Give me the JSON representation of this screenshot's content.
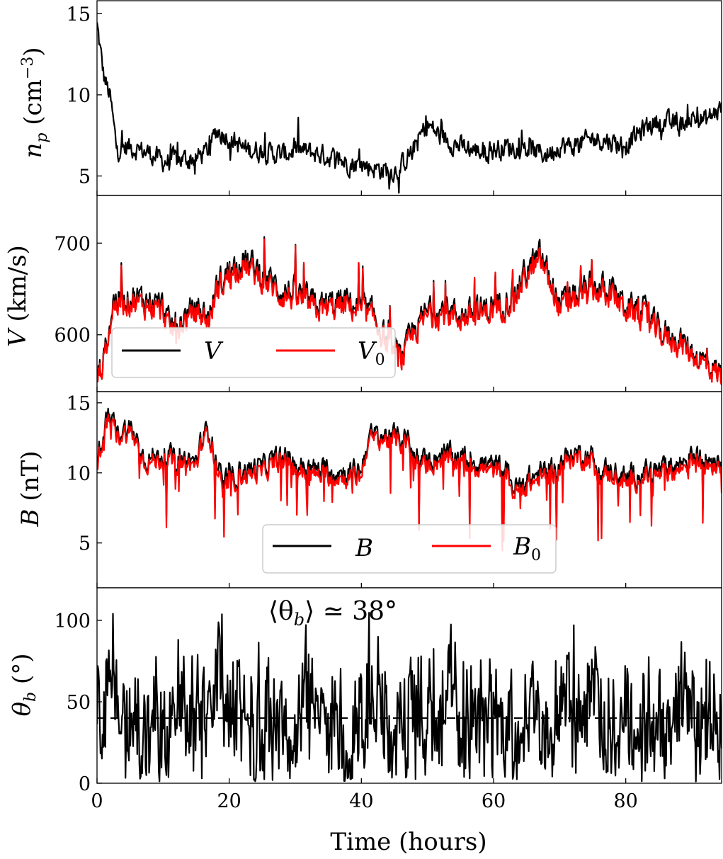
{
  "chart_data": [
    {
      "type": "line",
      "ylabel": "n_p (cm^-3)",
      "ylim": [
        3.8,
        15.8
      ],
      "yticks": [
        "5",
        "10",
        "15"
      ],
      "xlim": [
        0,
        94.5
      ],
      "series": [
        {
          "name": "",
          "color": "#000000",
          "x": [
            0,
            1,
            2,
            2.5,
            3,
            5,
            8,
            10,
            12,
            15,
            17,
            18,
            20,
            22,
            25,
            28,
            30,
            33,
            35,
            38,
            40,
            43,
            45,
            46,
            48,
            50,
            52,
            55,
            58,
            60,
            62,
            65,
            68,
            70,
            72,
            75,
            77,
            80,
            83,
            85,
            88,
            90,
            92,
            94.5
          ],
          "y": [
            14.3,
            11.2,
            9.8,
            8.2,
            6.6,
            6.8,
            6.4,
            5.9,
            6.0,
            6.1,
            6.6,
            7.8,
            7.4,
            6.7,
            6.5,
            6.3,
            6.6,
            6.4,
            6.2,
            5.8,
            5.7,
            5.4,
            5.3,
            5.6,
            6.8,
            8.2,
            7.4,
            6.8,
            6.5,
            6.6,
            6.8,
            6.7,
            6.3,
            6.9,
            6.8,
            7.3,
            7.2,
            6.9,
            8.0,
            8.4,
            8.1,
            8.6,
            8.4,
            9.2
          ]
        }
      ]
    },
    {
      "type": "line",
      "ylabel": "V (km/s)",
      "ylim": [
        538,
        752
      ],
      "yticks": [
        "600",
        "700"
      ],
      "xlim": [
        0,
        94.5
      ],
      "legend": {
        "placement": "lower-left",
        "entries": [
          "V",
          "V_0"
        ]
      },
      "series": [
        {
          "name": "V",
          "color": "#000000",
          "x": [
            0,
            1,
            2.5,
            5,
            8,
            10,
            11,
            12,
            15,
            17,
            18,
            20,
            22,
            25,
            28,
            30,
            33,
            35,
            38,
            40,
            42,
            44,
            46,
            48,
            50,
            53,
            55,
            58,
            60,
            63,
            65,
            67,
            68,
            70,
            73,
            75,
            78,
            80,
            83,
            85,
            88,
            90,
            92,
            94.5
          ],
          "y": [
            555,
            572,
            638,
            641,
            637,
            630,
            607,
            612,
            628,
            619,
            650,
            670,
            683,
            666,
            648,
            646,
            631,
            633,
            636,
            629,
            620,
            590,
            573,
            605,
            625,
            628,
            621,
            626,
            631,
            642,
            670,
            685,
            672,
            631,
            645,
            652,
            649,
            631,
            622,
            604,
            595,
            582,
            570,
            556
          ]
        },
        {
          "name": "V_0",
          "color": "#ff0000",
          "x": [
            0,
            1,
            2.5,
            5,
            8,
            10,
            11,
            12,
            15,
            17,
            18,
            20,
            22,
            25,
            28,
            30,
            33,
            35,
            38,
            40,
            42,
            44,
            46,
            48,
            50,
            53,
            55,
            58,
            60,
            63,
            65,
            67,
            68,
            70,
            73,
            75,
            78,
            80,
            83,
            85,
            88,
            90,
            92,
            94.5
          ],
          "y": [
            553,
            570,
            632,
            636,
            631,
            625,
            603,
            608,
            623,
            615,
            646,
            664,
            676,
            660,
            642,
            641,
            627,
            628,
            631,
            624,
            616,
            587,
            571,
            601,
            620,
            623,
            617,
            622,
            626,
            637,
            664,
            679,
            667,
            627,
            640,
            647,
            644,
            627,
            618,
            600,
            591,
            579,
            567,
            554
          ]
        }
      ]
    },
    {
      "type": "line",
      "ylabel": "B (nT)",
      "ylim": [
        1.8,
        15.8
      ],
      "yticks": [
        "5",
        "10",
        "15"
      ],
      "xlim": [
        0,
        94.5
      ],
      "legend": {
        "placement": "lower-center",
        "entries": [
          "B",
          "B_0"
        ]
      },
      "series": [
        {
          "name": "B",
          "color": "#000000",
          "x": [
            0,
            1,
            2,
            3,
            5,
            6,
            7,
            8,
            10,
            12,
            15,
            16,
            17,
            17.5,
            18,
            19,
            20,
            21,
            22,
            25,
            28,
            30,
            32,
            35,
            38,
            40,
            41,
            42,
            45,
            47,
            48,
            50,
            52,
            55,
            58,
            60,
            62,
            63,
            65,
            68,
            70,
            72,
            75,
            76,
            78,
            80,
            83,
            85,
            88,
            90,
            92,
            94.5
          ],
          "y": [
            10.8,
            13.2,
            14.0,
            12.9,
            13.2,
            12.4,
            11.2,
            11.0,
            11.3,
            11.0,
            10.8,
            12.6,
            13.1,
            12.0,
            11.0,
            9.2,
            9.7,
            9.9,
            10.2,
            10.4,
            11.2,
            10.6,
            10.3,
            10.2,
            10.0,
            10.2,
            12.5,
            12.7,
            12.6,
            12.3,
            11.1,
            10.9,
            11.3,
            11.2,
            10.7,
            10.5,
            10.3,
            8.9,
            9.5,
            10.2,
            10.7,
            11.4,
            11.2,
            10.1,
            10.3,
            9.6,
            10.1,
            10.2,
            10.6,
            11.3,
            11.0,
            11.1
          ]
        },
        {
          "name": "B_0",
          "color": "#ff0000",
          "x": [
            0,
            1,
            2,
            3,
            5,
            6,
            7,
            8,
            10,
            12,
            15,
            16,
            17,
            17.5,
            18,
            19,
            20,
            21,
            22,
            25,
            28,
            30,
            32,
            35,
            38,
            40,
            41,
            42,
            45,
            47,
            48,
            50,
            52,
            55,
            58,
            60,
            62,
            63,
            65,
            68,
            70,
            72,
            75,
            76,
            78,
            80,
            83,
            85,
            88,
            90,
            92,
            94.5
          ],
          "y": [
            10.5,
            12.9,
            13.7,
            12.6,
            12.9,
            12.1,
            10.9,
            10.7,
            11.0,
            10.7,
            10.5,
            12.3,
            12.8,
            11.7,
            10.6,
            8.6,
            9.3,
            9.5,
            9.8,
            10.0,
            10.9,
            10.2,
            9.9,
            9.8,
            9.6,
            9.8,
            12.2,
            12.4,
            12.3,
            12.0,
            10.7,
            10.5,
            10.9,
            10.8,
            10.3,
            10.1,
            9.9,
            8.5,
            9.1,
            9.8,
            10.3,
            11.1,
            10.9,
            9.7,
            9.9,
            9.2,
            9.7,
            9.8,
            10.2,
            10.9,
            10.6,
            10.7
          ]
        }
      ]
    },
    {
      "type": "line",
      "ylabel": "θ_b (°)",
      "xlabel": "Time (hours)",
      "ylim": [
        0,
        120
      ],
      "yticks": [
        "0",
        "50",
        "100"
      ],
      "xlim": [
        0,
        94.5
      ],
      "xticks": [
        "0",
        "20",
        "40",
        "60",
        "80"
      ],
      "annotation": "⟨θ_b⟩ ≃ 38°",
      "reference_line": {
        "y": 40,
        "style": "dashed"
      },
      "series": [
        {
          "name": "",
          "color": "#000000",
          "x": [
            0,
            1,
            2,
            2.6,
            4,
            5,
            7,
            9,
            10,
            12,
            15,
            18,
            18.4,
            20,
            22,
            24,
            26,
            28,
            30,
            32,
            34,
            36,
            38,
            40,
            42,
            45,
            46,
            48,
            50,
            52,
            53.7,
            55,
            57,
            60,
            62,
            64,
            66,
            68,
            70,
            72,
            74,
            75.4,
            76,
            78,
            80,
            82,
            84,
            86,
            88,
            89.8,
            91,
            93,
            94.5
          ],
          "y": [
            35,
            55,
            45,
            60,
            30,
            40,
            25,
            35,
            20,
            45,
            38,
            55,
            75,
            30,
            58,
            22,
            40,
            35,
            28,
            48,
            30,
            42,
            26,
            35,
            45,
            25,
            30,
            48,
            38,
            55,
            68,
            32,
            40,
            28,
            44,
            30,
            52,
            26,
            45,
            35,
            50,
            60,
            38,
            28,
            48,
            35,
            42,
            25,
            40,
            62,
            30,
            45,
            30
          ]
        }
      ]
    }
  ],
  "labels": {
    "panel1_ylabel_sym": "n",
    "panel1_ylabel_sub": "p",
    "panel1_ylabel_unit": " (cm",
    "panel1_ylabel_exp": "−3",
    "panel1_ylabel_close": ")",
    "panel2_ylabel_sym": "V",
    "panel2_ylabel_unit": " (km/s)",
    "panel3_ylabel_sym": "B",
    "panel3_ylabel_unit": " (nT)",
    "panel4_ylabel_sym": "θ",
    "panel4_ylabel_sub": "b",
    "panel4_ylabel_unit": " (°)",
    "xlabel": "Time (hours)",
    "legend2_a": "V",
    "legend2_b": "V",
    "legend2_b_sub": "0",
    "legend3_a": "B",
    "legend3_b": "B",
    "legend3_b_sub": "0",
    "annot_open": "⟨θ",
    "annot_sub": "b",
    "annot_rest": "⟩ ≃ 38°"
  }
}
